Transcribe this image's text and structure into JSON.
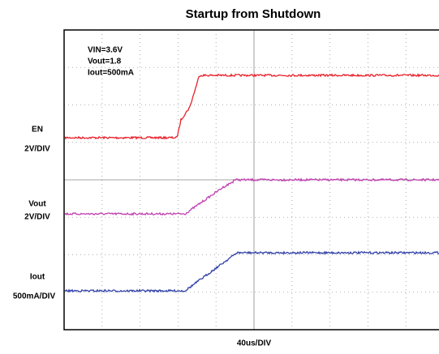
{
  "title": "Startup from Shutdown",
  "conditions": [
    "VIN=3.6V",
    "Vout=1.8",
    "Iout=500mA"
  ],
  "channels": [
    {
      "name": "EN",
      "scale": "2V/DIV"
    },
    {
      "name": "Vout",
      "scale": "2V/DIV"
    },
    {
      "name": "Iout",
      "scale": "500mA/DIV"
    }
  ],
  "timebase": "40us/DIV"
}
